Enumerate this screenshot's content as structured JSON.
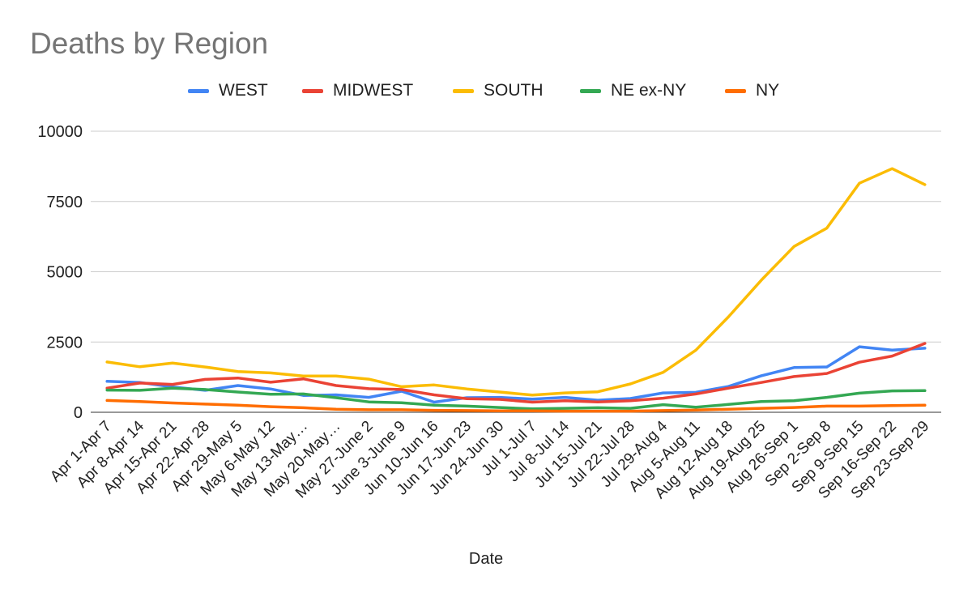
{
  "chart_data": {
    "type": "line",
    "title": "Deaths by Region",
    "xlabel": "Date",
    "ylabel": "",
    "ylim": [
      0,
      10000
    ],
    "yticks": [
      "0",
      "2500",
      "5000",
      "7500",
      "10000"
    ],
    "grid": true,
    "legend_position": "top",
    "categories": [
      "Apr 1-Apr 7",
      "Apr 8-Apr 14",
      "Apr 15-Apr 21",
      "Apr 22-Apr 28",
      "Apr 29-May 5",
      "May 6-May 12",
      "May 13-May…",
      "May 20-May…",
      "May 27-June 2",
      "June 3-June 9",
      "Jun 10-Jun 16",
      "Jun 17-Jun 23",
      "Jun 24-Jun 30",
      "Jul 1-Jul 7",
      "Jul 8-Jul 14",
      "Jul 15-Jul 21",
      "Jul 22-Jul 28",
      "Jul 29-Aug 4",
      "Aug 5-Aug 11",
      "Aug 12-Aug 18",
      "Aug 19-Aug 25",
      "Aug 26-Sep 1",
      "Sep 2-Sep 8",
      "Sep 9-Sep 15",
      "Sep 16-Sep 22",
      "Sep 23-Sep 29"
    ],
    "series": [
      {
        "name": "WEST",
        "color": "#4285f4",
        "values": [
          1100,
          1060,
          900,
          780,
          950,
          830,
          600,
          620,
          530,
          750,
          360,
          520,
          530,
          470,
          530,
          430,
          490,
          690,
          710,
          920,
          1300,
          1590,
          1610,
          2330,
          2210,
          2280
        ]
      },
      {
        "name": "MIDWEST",
        "color": "#ea4335",
        "values": [
          860,
          1040,
          990,
          1170,
          1220,
          1070,
          1190,
          950,
          840,
          810,
          620,
          480,
          460,
          360,
          410,
          370,
          410,
          500,
          650,
          860,
          1060,
          1270,
          1380,
          1780,
          2000,
          2450
        ]
      },
      {
        "name": "SOUTH",
        "color": "#fbbc04",
        "values": [
          1790,
          1620,
          1750,
          1610,
          1450,
          1400,
          1290,
          1290,
          1180,
          910,
          970,
          830,
          720,
          610,
          690,
          730,
          1010,
          1420,
          2210,
          3400,
          4700,
          5900,
          6550,
          8150,
          8670,
          8100
        ]
      },
      {
        "name": "NE ex-NY",
        "color": "#34a853",
        "values": [
          790,
          780,
          860,
          810,
          720,
          640,
          650,
          520,
          370,
          340,
          250,
          220,
          170,
          120,
          140,
          160,
          140,
          270,
          180,
          280,
          380,
          410,
          530,
          680,
          760,
          770
        ]
      },
      {
        "name": "NY",
        "color": "#ff6d01",
        "values": [
          420,
          380,
          330,
          290,
          250,
          200,
          160,
          110,
          90,
          90,
          70,
          60,
          50,
          50,
          40,
          40,
          40,
          60,
          80,
          110,
          140,
          170,
          220,
          220,
          240,
          250
        ]
      }
    ]
  }
}
